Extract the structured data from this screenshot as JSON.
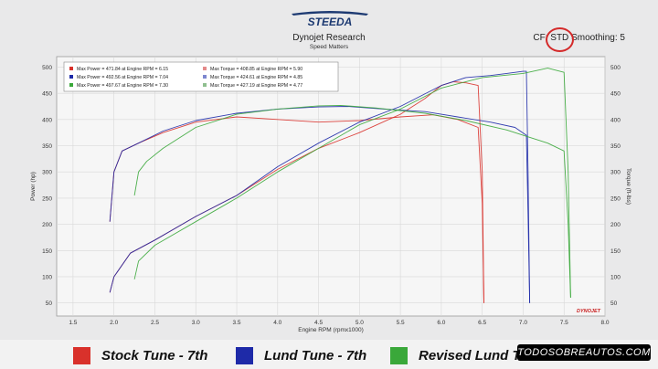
{
  "header": {
    "brand": "STEEDA",
    "title": "Dynojet Research",
    "subtitle": "Speed Matters",
    "cf_prefix": "CF:",
    "cf_value": "STD",
    "smoothing_label": "Smoothing: 5"
  },
  "chart_data": {
    "type": "line",
    "title": "Dynojet Research",
    "subtitle": "Speed Matters",
    "xlabel": "Engine RPM (rpmx1000)",
    "ylabel_left": "Power (hp)",
    "ylabel_right": "Torque (ft-lbs)",
    "xlim": [
      1.3,
      8.0
    ],
    "ylim": [
      25,
      520
    ],
    "x_ticks": [
      "1.5",
      "2.0",
      "2.5",
      "3.0",
      "3.5",
      "4.0",
      "4.5",
      "5.0",
      "5.5",
      "6.0",
      "6.5",
      "7.0",
      "7.5",
      "8.0"
    ],
    "y_ticks": [
      "50",
      "100",
      "150",
      "200",
      "250",
      "300",
      "350",
      "400",
      "450",
      "500"
    ],
    "grid": true,
    "colors": {
      "Stock Tune - 7th": "#d9312b",
      "Lund Tune - 7th": "#1e2aa8",
      "Revised Lund Tune - 7th": "#3aa83a"
    },
    "chart_legend": [
      {
        "color": "#d9312b",
        "text": "Max Power = 471.84 at Engine RPM = 6.15"
      },
      {
        "color": "#1e2aa8",
        "text": "Max Power = 492.56 at Engine RPM = 7.04"
      },
      {
        "color": "#3aa83a",
        "text": "Max Power = 497.67 at Engine RPM = 7.30"
      },
      {
        "color": "#e48a8a",
        "text": "Max Torque = 408.85 at Engine RPM = 5.90"
      },
      {
        "color": "#7d87cf",
        "text": "Max Torque = 424.61 at Engine RPM = 4.85"
      },
      {
        "color": "#8fbf8f",
        "text": "Max Torque = 427.19 at Engine RPM = 4.77"
      }
    ],
    "series": [
      {
        "name": "Stock Tune - 7th",
        "kind": "power",
        "color": "#d9312b",
        "x": [
          1.95,
          2.0,
          2.2,
          2.5,
          3.0,
          3.5,
          4.0,
          4.5,
          5.0,
          5.5,
          5.8,
          6.0,
          6.15,
          6.3,
          6.45,
          6.5,
          6.52
        ],
        "y": [
          70,
          100,
          145,
          170,
          215,
          255,
          305,
          345,
          375,
          410,
          440,
          465,
          472,
          470,
          465,
          300,
          50
        ]
      },
      {
        "name": "Stock Tune - 7th",
        "kind": "torque",
        "color": "#d9312b",
        "x": [
          1.95,
          2.0,
          2.1,
          2.3,
          2.6,
          3.0,
          3.5,
          4.0,
          4.5,
          5.0,
          5.5,
          5.9,
          6.2,
          6.45,
          6.5,
          6.52
        ],
        "y": [
          205,
          300,
          340,
          355,
          375,
          395,
          405,
          400,
          395,
          398,
          405,
          409,
          400,
          385,
          240,
          50
        ]
      },
      {
        "name": "Lund Tune - 7th",
        "kind": "power",
        "color": "#1e2aa8",
        "x": [
          1.95,
          2.0,
          2.2,
          2.5,
          3.0,
          3.5,
          4.0,
          4.5,
          5.0,
          5.5,
          6.0,
          6.3,
          6.6,
          6.8,
          7.0,
          7.04,
          7.06,
          7.08
        ],
        "y": [
          70,
          100,
          145,
          170,
          215,
          255,
          310,
          355,
          395,
          425,
          465,
          480,
          484,
          488,
          492,
          492,
          300,
          50
        ]
      },
      {
        "name": "Lund Tune - 7th",
        "kind": "torque",
        "color": "#1e2aa8",
        "x": [
          1.95,
          2.0,
          2.1,
          2.3,
          2.6,
          3.0,
          3.5,
          4.0,
          4.5,
          4.85,
          5.3,
          5.8,
          6.2,
          6.6,
          6.9,
          7.04,
          7.06,
          7.08
        ],
        "y": [
          205,
          300,
          340,
          355,
          378,
          398,
          412,
          420,
          424,
          425,
          420,
          415,
          405,
          395,
          385,
          370,
          220,
          50
        ]
      },
      {
        "name": "Revised Lund Tune - 7th",
        "kind": "power",
        "color": "#3aa83a",
        "x": [
          2.25,
          2.3,
          2.5,
          3.0,
          3.5,
          4.0,
          4.5,
          5.0,
          5.5,
          6.0,
          6.5,
          7.0,
          7.3,
          7.5,
          7.55,
          7.58
        ],
        "y": [
          95,
          130,
          160,
          205,
          250,
          300,
          345,
          390,
          420,
          460,
          480,
          488,
          498,
          490,
          300,
          60
        ]
      },
      {
        "name": "Revised Lund Tune - 7th",
        "kind": "torque",
        "color": "#3aa83a",
        "x": [
          2.25,
          2.3,
          2.4,
          2.6,
          3.0,
          3.5,
          4.0,
          4.5,
          4.77,
          5.2,
          5.8,
          6.3,
          6.8,
          7.3,
          7.5,
          7.55,
          7.58
        ],
        "y": [
          255,
          300,
          320,
          345,
          385,
          410,
          420,
          426,
          427,
          422,
          412,
          398,
          380,
          355,
          340,
          200,
          60
        ]
      }
    ]
  },
  "bottom_legend": [
    {
      "label": "Stock Tune - 7th",
      "color": "#d9312b"
    },
    {
      "label": "Lund Tune - 7th",
      "color": "#1e2aa8"
    },
    {
      "label": "Revised Lund Tune - 7th",
      "color": "#3aa83a"
    }
  ],
  "watermark": "TODOSOBREAUTOS.COM",
  "dynojet_mark": "DYNOJET"
}
